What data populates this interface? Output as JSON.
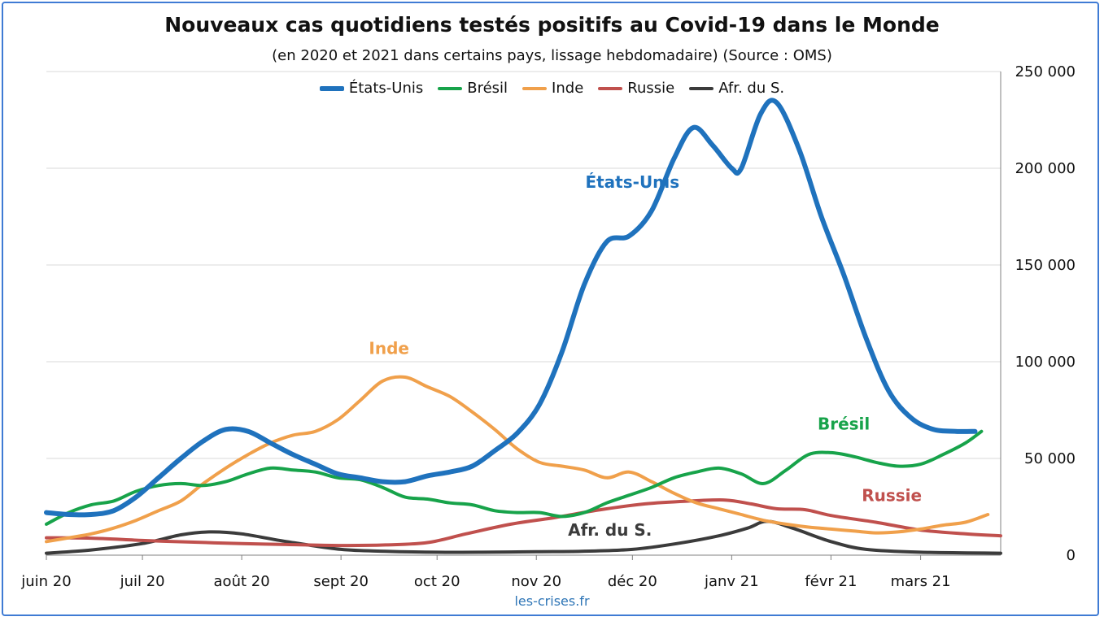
{
  "chart_data": {
    "type": "line",
    "title": "Nouveaux cas quotidiens testés positifs au Covid-19 dans le Monde",
    "subtitle": "(en 2020 et 2021 dans certains pays, lissage hebdomadaire) (Source : OMS)",
    "source_label": "les-crises.fr",
    "y_axis": {
      "position": "right",
      "ylim": [
        0,
        250000
      ],
      "ticks": [
        0,
        50000,
        100000,
        150000,
        200000,
        250000
      ],
      "tick_labels": [
        "0",
        "50 000",
        "100 000",
        "150 000",
        "200 000",
        "250 000"
      ]
    },
    "x_axis": {
      "range": [
        "2020-06-01",
        "2021-03-26"
      ],
      "ticks": [
        {
          "date": "2020-06-01",
          "label": "juin 20"
        },
        {
          "date": "2020-07-01",
          "label": "juil 20"
        },
        {
          "date": "2020-08-01",
          "label": "août 20"
        },
        {
          "date": "2020-09-01",
          "label": "sept 20"
        },
        {
          "date": "2020-10-01",
          "label": "oct 20"
        },
        {
          "date": "2020-11-01",
          "label": "nov 20"
        },
        {
          "date": "2020-12-01",
          "label": "déc 20"
        },
        {
          "date": "2021-01-01",
          "label": "janv 21"
        },
        {
          "date": "2021-02-01",
          "label": "févr 21"
        },
        {
          "date": "2021-03-01",
          "label": "mars 21"
        }
      ]
    },
    "grid": "horizontal",
    "legend_placement": "top",
    "series": [
      {
        "name": "États-Unis",
        "color": "#1f72bd",
        "width": 6,
        "annotation": "États-Unis",
        "points": [
          [
            "2020-06-01",
            22000
          ],
          [
            "2020-06-08",
            21000
          ],
          [
            "2020-06-15",
            21000
          ],
          [
            "2020-06-22",
            23000
          ],
          [
            "2020-06-29",
            30000
          ],
          [
            "2020-07-06",
            40000
          ],
          [
            "2020-07-13",
            50000
          ],
          [
            "2020-07-20",
            59000
          ],
          [
            "2020-07-27",
            65000
          ],
          [
            "2020-08-03",
            64000
          ],
          [
            "2020-08-10",
            58000
          ],
          [
            "2020-08-17",
            52000
          ],
          [
            "2020-08-24",
            47000
          ],
          [
            "2020-08-31",
            42000
          ],
          [
            "2020-09-07",
            40000
          ],
          [
            "2020-09-14",
            38000
          ],
          [
            "2020-09-21",
            38000
          ],
          [
            "2020-09-28",
            41000
          ],
          [
            "2020-10-05",
            43000
          ],
          [
            "2020-10-12",
            46000
          ],
          [
            "2020-10-19",
            54000
          ],
          [
            "2020-10-26",
            63000
          ],
          [
            "2020-11-02",
            78000
          ],
          [
            "2020-11-09",
            105000
          ],
          [
            "2020-11-16",
            140000
          ],
          [
            "2020-11-23",
            162000
          ],
          [
            "2020-11-30",
            165000
          ],
          [
            "2020-12-07",
            178000
          ],
          [
            "2020-12-14",
            205000
          ],
          [
            "2020-12-20",
            221000
          ],
          [
            "2020-12-26",
            212000
          ],
          [
            "2021-01-01",
            200000
          ],
          [
            "2021-01-04",
            200000
          ],
          [
            "2021-01-10",
            228000
          ],
          [
            "2021-01-15",
            234000
          ],
          [
            "2021-01-22",
            210000
          ],
          [
            "2021-01-29",
            175000
          ],
          [
            "2021-02-05",
            145000
          ],
          [
            "2021-02-12",
            112000
          ],
          [
            "2021-02-19",
            85000
          ],
          [
            "2021-02-26",
            71000
          ],
          [
            "2021-03-05",
            65000
          ],
          [
            "2021-03-12",
            64000
          ],
          [
            "2021-03-18",
            64000
          ]
        ]
      },
      {
        "name": "Brésil",
        "color": "#17a34a",
        "width": 4,
        "annotation": "Brésil",
        "points": [
          [
            "2020-06-01",
            16000
          ],
          [
            "2020-06-08",
            22000
          ],
          [
            "2020-06-15",
            26000
          ],
          [
            "2020-06-22",
            28000
          ],
          [
            "2020-06-29",
            33000
          ],
          [
            "2020-07-06",
            36000
          ],
          [
            "2020-07-13",
            37000
          ],
          [
            "2020-07-20",
            36000
          ],
          [
            "2020-07-27",
            38000
          ],
          [
            "2020-08-03",
            42000
          ],
          [
            "2020-08-10",
            45000
          ],
          [
            "2020-08-17",
            44000
          ],
          [
            "2020-08-24",
            43000
          ],
          [
            "2020-08-31",
            40000
          ],
          [
            "2020-09-07",
            39000
          ],
          [
            "2020-09-14",
            35000
          ],
          [
            "2020-09-21",
            30000
          ],
          [
            "2020-09-28",
            29000
          ],
          [
            "2020-10-05",
            27000
          ],
          [
            "2020-10-12",
            26000
          ],
          [
            "2020-10-19",
            23000
          ],
          [
            "2020-10-26",
            22000
          ],
          [
            "2020-11-02",
            22000
          ],
          [
            "2020-11-09",
            20000
          ],
          [
            "2020-11-16",
            22000
          ],
          [
            "2020-11-23",
            27000
          ],
          [
            "2020-11-30",
            31000
          ],
          [
            "2020-12-07",
            35000
          ],
          [
            "2020-12-14",
            40000
          ],
          [
            "2020-12-21",
            43000
          ],
          [
            "2020-12-28",
            45000
          ],
          [
            "2021-01-04",
            42000
          ],
          [
            "2021-01-11",
            37000
          ],
          [
            "2021-01-18",
            44000
          ],
          [
            "2021-01-25",
            52000
          ],
          [
            "2021-02-01",
            53000
          ],
          [
            "2021-02-08",
            51000
          ],
          [
            "2021-02-15",
            48000
          ],
          [
            "2021-02-22",
            46000
          ],
          [
            "2021-03-01",
            47000
          ],
          [
            "2021-03-08",
            52000
          ],
          [
            "2021-03-15",
            58000
          ],
          [
            "2021-03-20",
            64000
          ]
        ]
      },
      {
        "name": "Inde",
        "color": "#f0a04b",
        "width": 4,
        "annotation": "Inde",
        "points": [
          [
            "2020-06-01",
            7000
          ],
          [
            "2020-06-08",
            9000
          ],
          [
            "2020-06-15",
            11000
          ],
          [
            "2020-06-22",
            14000
          ],
          [
            "2020-06-29",
            18000
          ],
          [
            "2020-07-06",
            23000
          ],
          [
            "2020-07-13",
            28000
          ],
          [
            "2020-07-20",
            37000
          ],
          [
            "2020-07-27",
            45000
          ],
          [
            "2020-08-03",
            52000
          ],
          [
            "2020-08-10",
            58000
          ],
          [
            "2020-08-17",
            62000
          ],
          [
            "2020-08-24",
            64000
          ],
          [
            "2020-08-31",
            70000
          ],
          [
            "2020-09-07",
            80000
          ],
          [
            "2020-09-14",
            90000
          ],
          [
            "2020-09-21",
            92000
          ],
          [
            "2020-09-28",
            87000
          ],
          [
            "2020-10-05",
            82000
          ],
          [
            "2020-10-12",
            74000
          ],
          [
            "2020-10-19",
            65000
          ],
          [
            "2020-10-26",
            55000
          ],
          [
            "2020-11-02",
            48000
          ],
          [
            "2020-11-09",
            46000
          ],
          [
            "2020-11-16",
            44000
          ],
          [
            "2020-11-23",
            40000
          ],
          [
            "2020-11-30",
            43000
          ],
          [
            "2020-12-07",
            38000
          ],
          [
            "2020-12-14",
            32000
          ],
          [
            "2020-12-21",
            27000
          ],
          [
            "2020-12-28",
            24000
          ],
          [
            "2021-01-04",
            21000
          ],
          [
            "2021-01-11",
            18000
          ],
          [
            "2021-01-18",
            16000
          ],
          [
            "2021-01-25",
            14500
          ],
          [
            "2021-02-01",
            13500
          ],
          [
            "2021-02-08",
            12500
          ],
          [
            "2021-02-15",
            11500
          ],
          [
            "2021-02-22",
            12000
          ],
          [
            "2021-03-01",
            13500
          ],
          [
            "2021-03-08",
            15500
          ],
          [
            "2021-03-15",
            17000
          ],
          [
            "2021-03-22",
            21000
          ]
        ]
      },
      {
        "name": "Russie",
        "color": "#c0504d",
        "width": 4,
        "annotation": "Russie",
        "points": [
          [
            "2020-06-01",
            9000
          ],
          [
            "2020-06-15",
            8800
          ],
          [
            "2020-07-01",
            7600
          ],
          [
            "2020-07-15",
            6800
          ],
          [
            "2020-08-01",
            6000
          ],
          [
            "2020-08-15",
            5500
          ],
          [
            "2020-09-01",
            5000
          ],
          [
            "2020-09-15",
            5300
          ],
          [
            "2020-09-28",
            6500
          ],
          [
            "2020-10-10",
            11000
          ],
          [
            "2020-10-24",
            16000
          ],
          [
            "2020-11-07",
            19500
          ],
          [
            "2020-11-21",
            23500
          ],
          [
            "2020-12-05",
            26500
          ],
          [
            "2020-12-19",
            28000
          ],
          [
            "2020-12-30",
            28500
          ],
          [
            "2021-01-07",
            26500
          ],
          [
            "2021-01-15",
            24000
          ],
          [
            "2021-01-24",
            23500
          ],
          [
            "2021-02-01",
            20500
          ],
          [
            "2021-02-15",
            17000
          ],
          [
            "2021-03-01",
            13000
          ],
          [
            "2021-03-15",
            11000
          ],
          [
            "2021-03-26",
            10000
          ]
        ]
      },
      {
        "name": "Afr. du S.",
        "color": "#3b3b3b",
        "width": 4,
        "annotation": "Afr. du S.",
        "points": [
          [
            "2020-06-01",
            1000
          ],
          [
            "2020-06-15",
            2700
          ],
          [
            "2020-07-01",
            6000
          ],
          [
            "2020-07-13",
            10500
          ],
          [
            "2020-07-22",
            12000
          ],
          [
            "2020-08-01",
            11000
          ],
          [
            "2020-08-15",
            7000
          ],
          [
            "2020-09-01",
            3000
          ],
          [
            "2020-09-15",
            2000
          ],
          [
            "2020-10-01",
            1500
          ],
          [
            "2020-10-15",
            1500
          ],
          [
            "2020-11-01",
            1800
          ],
          [
            "2020-11-15",
            2000
          ],
          [
            "2020-12-01",
            3000
          ],
          [
            "2020-12-15",
            6000
          ],
          [
            "2020-12-28",
            10000
          ],
          [
            "2021-01-06",
            14000
          ],
          [
            "2021-01-12",
            17500
          ],
          [
            "2021-01-20",
            14000
          ],
          [
            "2021-02-01",
            7000
          ],
          [
            "2021-02-12",
            3000
          ],
          [
            "2021-03-01",
            1500
          ],
          [
            "2021-03-26",
            1000
          ]
        ]
      }
    ],
    "annotations": [
      {
        "text": "États-Unis",
        "date": "2020-12-01",
        "value": 190000,
        "color": "#1f72bd"
      },
      {
        "text": "Inde",
        "date": "2020-09-16",
        "value": 104000,
        "color": "#f0a04b"
      },
      {
        "text": "Brésil",
        "date": "2021-02-05",
        "value": 65000,
        "color": "#17a34a"
      },
      {
        "text": "Russie",
        "date": "2021-02-20",
        "value": 28000,
        "color": "#c0504d"
      },
      {
        "text": "Afr. du S.",
        "date": "2020-11-24",
        "value": 10000,
        "color": "#3b3b3b"
      }
    ]
  }
}
